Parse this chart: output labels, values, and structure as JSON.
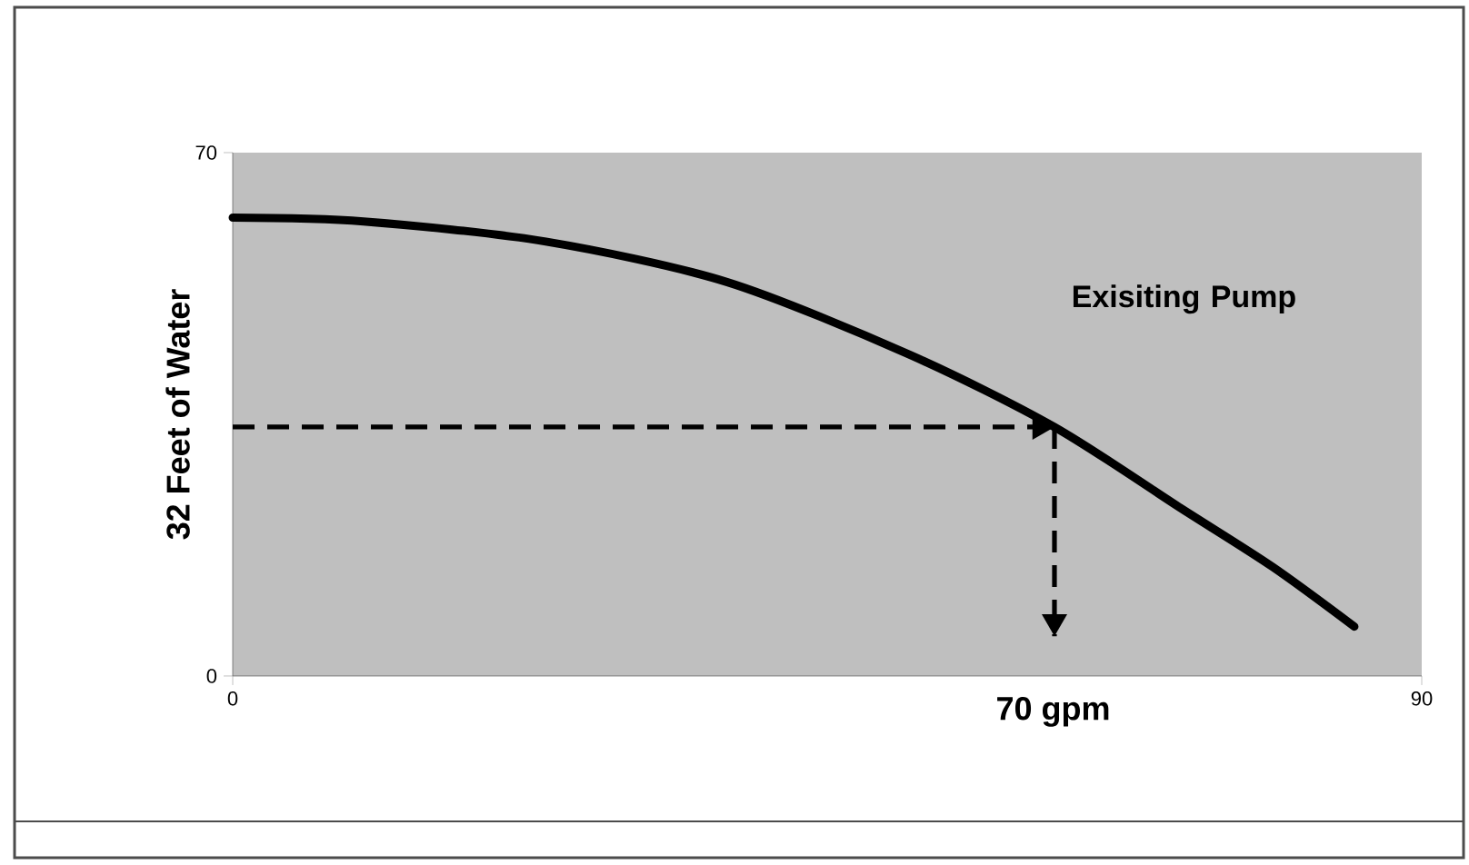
{
  "chart_data": {
    "type": "line",
    "xlabel": "70 gpm",
    "ylabel": "32 Feet of Water",
    "annotations": [
      "Exisiting Pump"
    ],
    "xlim": [
      0,
      90
    ],
    "ylim": [
      0,
      70
    ],
    "xticks": [
      0,
      90
    ],
    "yticks": [
      0,
      70
    ],
    "series": [
      {
        "color": "#000000",
        "line_style": "solid",
        "x": [
          0,
          9.9,
          23.7,
          37.4,
          51.2,
          62.2,
          71.8,
          78.7,
          84.9
        ],
        "values": [
          61.3,
          60.8,
          58.1,
          52.7,
          43.0,
          33.3,
          22.4,
          14.6,
          6.6
        ]
      },
      {
        "color": "#000000",
        "line_style": "dashed",
        "x": [
          0,
          62.2
        ],
        "values": [
          33.3,
          33.3
        ]
      },
      {
        "color": "#000000",
        "line_style": "dashed",
        "x": [
          62.2,
          62.2
        ],
        "values": [
          33.3,
          5.3
        ]
      }
    ]
  }
}
